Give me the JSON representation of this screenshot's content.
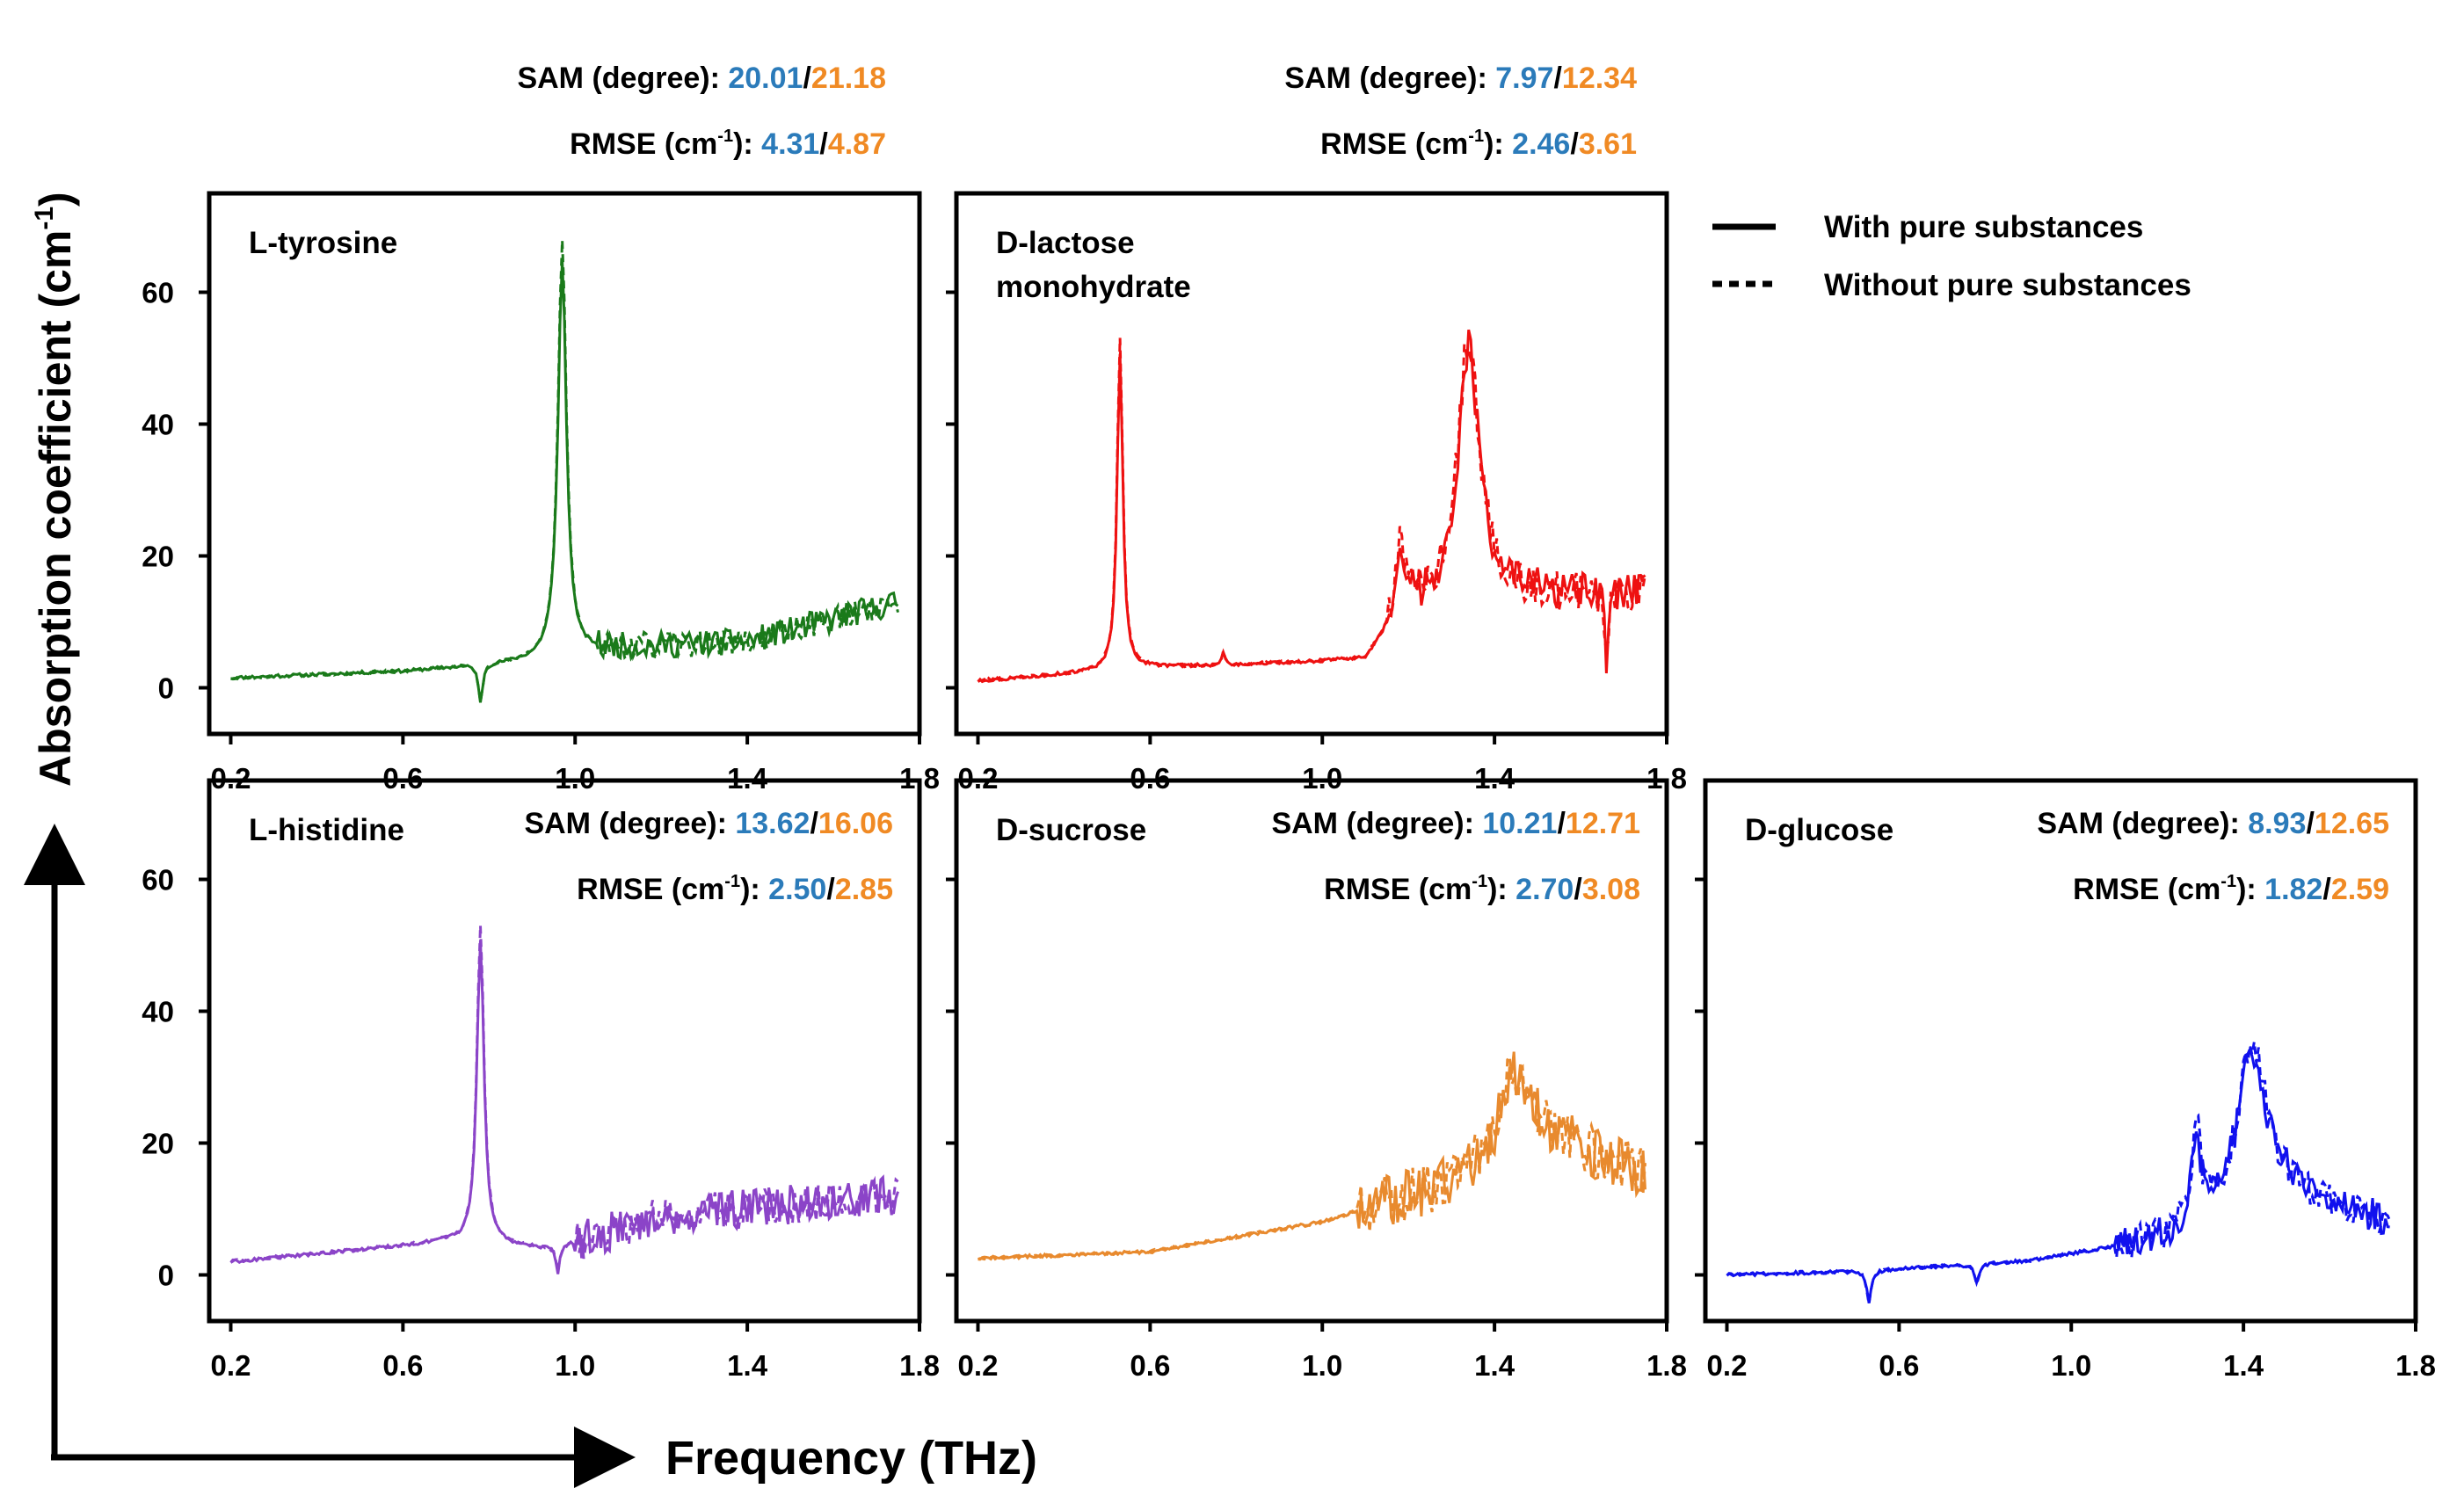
{
  "figure": {
    "x_axis_label": "Frequency (THz)",
    "y_axis_label": "Absorption coefficient (cm",
    "y_axis_label_sup": "-1",
    "y_axis_label_end": ")",
    "legend": {
      "solid": "With pure substances",
      "dotted": "Without pure substances"
    },
    "metric_labels": {
      "sam": "SAM (degree): ",
      "rmse_pre": "RMSE (cm",
      "rmse_sup": "-1",
      "rmse_post": "): ",
      "sep": "/"
    },
    "colors": {
      "with": "#2b7bba",
      "without": "#f08a24"
    }
  },
  "chart_data": [
    {
      "type": "line",
      "title": "L-tyrosine",
      "title2": "",
      "color": "#1a7a1a",
      "xlim": [
        0.15,
        1.8
      ],
      "ylim": [
        -7,
        75
      ],
      "xticks": [
        0.2,
        0.6,
        1.0,
        1.4,
        1.8
      ],
      "yticks": [
        0,
        20,
        40,
        60
      ],
      "xticklabels": [
        "0.2",
        "0.6",
        "1.0",
        "1.4",
        "1.8"
      ],
      "yticklabels": [
        "0",
        "20",
        "40",
        "60"
      ],
      "sam_with": "20.01",
      "sam_without": "21.18",
      "rmse_with": "4.31",
      "rmse_without": "4.87",
      "x_range": [
        0.2,
        1.75
      ],
      "peaks": [
        {
          "x": 0.97,
          "h": 60,
          "w": 0.012
        }
      ],
      "baseline": [
        [
          0.2,
          1.5
        ],
        [
          0.6,
          2.5
        ],
        [
          0.9,
          4
        ],
        [
          1.1,
          6
        ],
        [
          1.4,
          7
        ],
        [
          1.75,
          13
        ]
      ],
      "dips": [
        {
          "x": 0.78,
          "h": -6,
          "w": 0.006
        }
      ],
      "noise_start": 1.05,
      "noise_amp": 4,
      "series": [
        {
          "name": "With pure substances"
        },
        {
          "name": "Without pure substances"
        }
      ]
    },
    {
      "type": "line",
      "title": "D-lactose",
      "title2": "monohydrate",
      "color": "#ee1111",
      "xlim": [
        0.15,
        1.8
      ],
      "ylim": [
        -7,
        75
      ],
      "xticks": [
        0.2,
        0.6,
        1.0,
        1.4,
        1.8
      ],
      "yticks": [
        0,
        20,
        40,
        60
      ],
      "xticklabels": [
        "0.2",
        "0.6",
        "1.0",
        "1.4",
        "1.8"
      ],
      "yticklabels": [
        "0",
        "20",
        "40",
        "60"
      ],
      "sam_with": "7.97",
      "sam_without": "12.34",
      "rmse_with": "2.46",
      "rmse_without": "3.61",
      "x_range": [
        0.2,
        1.75
      ],
      "peaks": [
        {
          "x": 0.53,
          "h": 48,
          "w": 0.008
        },
        {
          "x": 1.34,
          "h": 38,
          "w": 0.03
        },
        {
          "x": 1.18,
          "h": 12,
          "w": 0.01
        },
        {
          "x": 0.77,
          "h": 2,
          "w": 0.004
        }
      ],
      "baseline": [
        [
          0.2,
          1
        ],
        [
          0.6,
          3
        ],
        [
          1.1,
          4
        ],
        [
          1.2,
          12
        ],
        [
          1.4,
          14
        ],
        [
          1.75,
          14
        ]
      ],
      "dips": [
        {
          "x": 1.66,
          "h": -12,
          "w": 0.004
        }
      ],
      "noise_start": 1.15,
      "noise_amp": 6,
      "series": [
        {
          "name": "With pure substances"
        },
        {
          "name": "Without pure substances"
        }
      ]
    },
    {
      "type": "line",
      "title": "L-histidine",
      "title2": "",
      "color": "#8b44c8",
      "xlim": [
        0.15,
        1.8
      ],
      "ylim": [
        -7,
        75
      ],
      "xticks": [
        0.2,
        0.6,
        1.0,
        1.4,
        1.8
      ],
      "yticks": [
        0,
        20,
        40,
        60
      ],
      "xticklabels": [
        "0.2",
        "0.6",
        "1.0",
        "1.4",
        "1.8"
      ],
      "yticklabels": [
        "0",
        "20",
        "40",
        "60"
      ],
      "sam_with": "13.62",
      "sam_without": "16.06",
      "rmse_with": "2.50",
      "rmse_without": "2.85",
      "x_range": [
        0.2,
        1.75
      ],
      "peaks": [
        {
          "x": 0.78,
          "h": 46,
          "w": 0.01
        }
      ],
      "baseline": [
        [
          0.2,
          2
        ],
        [
          0.7,
          5
        ],
        [
          0.95,
          4
        ],
        [
          1.2,
          9
        ],
        [
          1.75,
          12
        ]
      ],
      "dips": [
        {
          "x": 0.96,
          "h": -4,
          "w": 0.005
        }
      ],
      "noise_start": 1.0,
      "noise_amp": 6,
      "series": [
        {
          "name": "With pure substances"
        },
        {
          "name": "Without pure substances"
        }
      ]
    },
    {
      "type": "line",
      "title": "D-sucrose",
      "title2": "",
      "color": "#e88a2e",
      "xlim": [
        0.15,
        1.8
      ],
      "ylim": [
        -7,
        75
      ],
      "xticks": [
        0.2,
        0.6,
        1.0,
        1.4,
        1.8
      ],
      "yticks": [
        0,
        20,
        40,
        60
      ],
      "xticklabels": [
        "0.2",
        "0.6",
        "1.0",
        "1.4",
        "1.8"
      ],
      "yticklabels": [
        "0",
        "20",
        "40",
        "60"
      ],
      "sam_with": "10.21",
      "sam_without": "12.71",
      "rmse_with": "2.70",
      "rmse_without": "3.08",
      "x_range": [
        0.2,
        1.75
      ],
      "peaks": [
        {
          "x": 1.44,
          "h": 12,
          "w": 0.03
        }
      ],
      "baseline": [
        [
          0.2,
          2.5
        ],
        [
          0.6,
          3.5
        ],
        [
          1.0,
          8
        ],
        [
          1.3,
          14
        ],
        [
          1.5,
          22
        ],
        [
          1.75,
          15
        ]
      ],
      "dips": [],
      "noise_start": 1.08,
      "noise_amp": 8,
      "series": [
        {
          "name": "With pure substances"
        },
        {
          "name": "Without pure substances"
        }
      ]
    },
    {
      "type": "line",
      "title": "D-glucose",
      "title2": "",
      "color": "#1111ee",
      "xlim": [
        0.15,
        1.8
      ],
      "ylim": [
        -7,
        75
      ],
      "xticks": [
        0.2,
        0.6,
        1.0,
        1.4,
        1.8
      ],
      "yticks": [
        0,
        20,
        40,
        60
      ],
      "xticklabels": [
        "0.2",
        "0.6",
        "1.0",
        "1.4",
        "1.8"
      ],
      "yticklabels": [
        "0",
        "20",
        "40",
        "60"
      ],
      "sam_with": "8.93",
      "sam_without": "12.65",
      "rmse_with": "1.82",
      "rmse_without": "2.59",
      "x_range": [
        0.2,
        1.74
      ],
      "peaks": [
        {
          "x": 1.29,
          "h": 14,
          "w": 0.012
        },
        {
          "x": 1.42,
          "h": 24,
          "w": 0.04
        }
      ],
      "baseline": [
        [
          0.2,
          0
        ],
        [
          0.5,
          0.5
        ],
        [
          0.9,
          2
        ],
        [
          1.2,
          5
        ],
        [
          1.5,
          12
        ],
        [
          1.74,
          8
        ]
      ],
      "dips": [
        {
          "x": 0.53,
          "h": -5,
          "w": 0.006
        },
        {
          "x": 0.78,
          "h": -3,
          "w": 0.006
        }
      ],
      "noise_start": 1.1,
      "noise_amp": 5,
      "series": [
        {
          "name": "With pure substances"
        },
        {
          "name": "Without pure substances"
        }
      ]
    }
  ]
}
